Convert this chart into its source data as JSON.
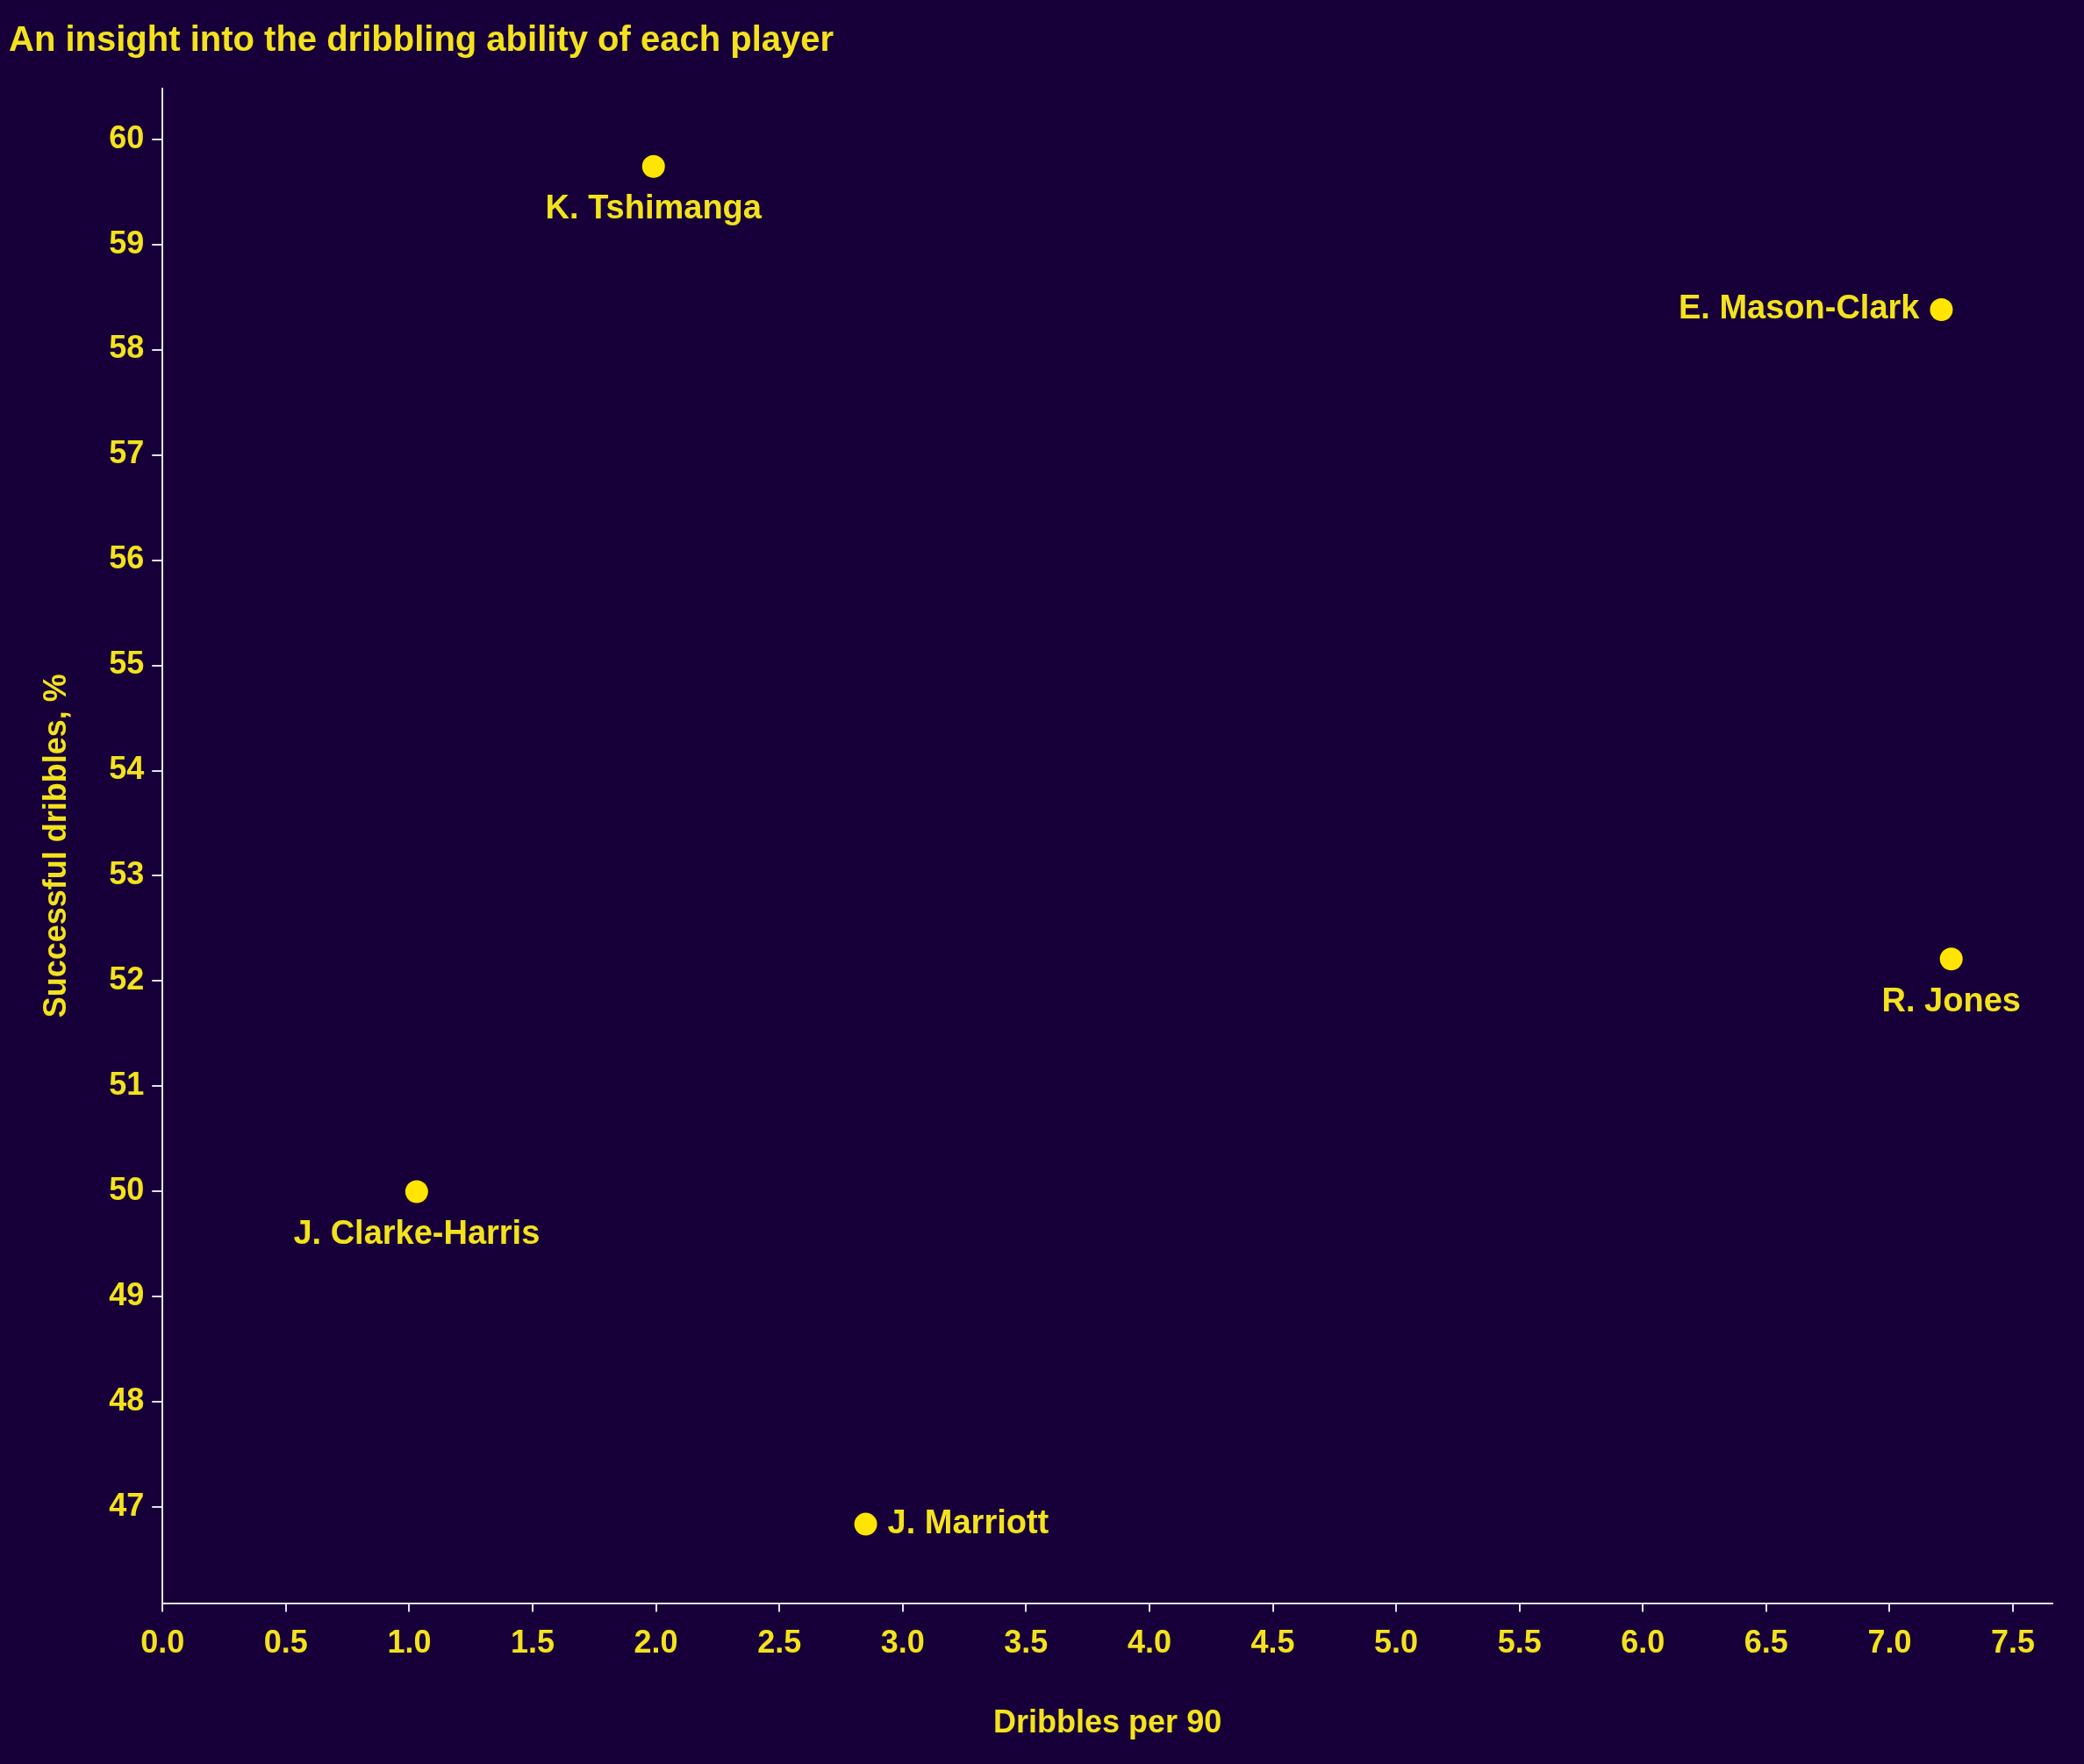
{
  "chart_data": {
    "type": "scatter",
    "title": "An insight into the dribbling ability of each player",
    "xlabel": "Dribbles per 90",
    "ylabel": "Successful dribbles, %",
    "x": [
      1.99,
      7.21,
      7.25,
      1.03,
      2.85
    ],
    "values": [
      59.74,
      58.38,
      52.21,
      50.0,
      46.84
    ],
    "color": "#ffe500",
    "marker": "circle",
    "xlim": [
      0,
      7.66
    ],
    "ylim": [
      46.09,
      60.48
    ],
    "xticks": [
      {
        "value": 0,
        "label": "0.0"
      },
      0.5,
      {
        "value": 1,
        "label": "1.0"
      },
      1.5,
      {
        "value": 2,
        "label": "2.0"
      },
      2.5,
      {
        "value": 3,
        "label": "3.0"
      },
      3.5,
      {
        "value": 4,
        "label": "4.0"
      },
      4.5,
      {
        "value": 5,
        "label": "5.0"
      },
      5.5,
      {
        "value": 6,
        "label": "6.0"
      },
      6.5,
      {
        "value": 7,
        "label": "7.0"
      },
      7.5
    ],
    "yticks": [
      47,
      48,
      49,
      50,
      51,
      52,
      53,
      54,
      55,
      56,
      57,
      58,
      59,
      60
    ],
    "annotations": [
      {
        "text": "K. Tshimanga",
        "x": 1.99,
        "y": 59.74
      },
      {
        "text": "E. Mason-Clark",
        "x": 7.21,
        "y": 58.38
      },
      {
        "text": "R. Jones",
        "x": 7.25,
        "y": 52.21
      },
      {
        "text": "J. Clarke-Harris",
        "x": 1.03,
        "y": 50.0
      },
      {
        "text": "J. Marriott",
        "x": 2.85,
        "y": 46.84
      }
    ]
  }
}
